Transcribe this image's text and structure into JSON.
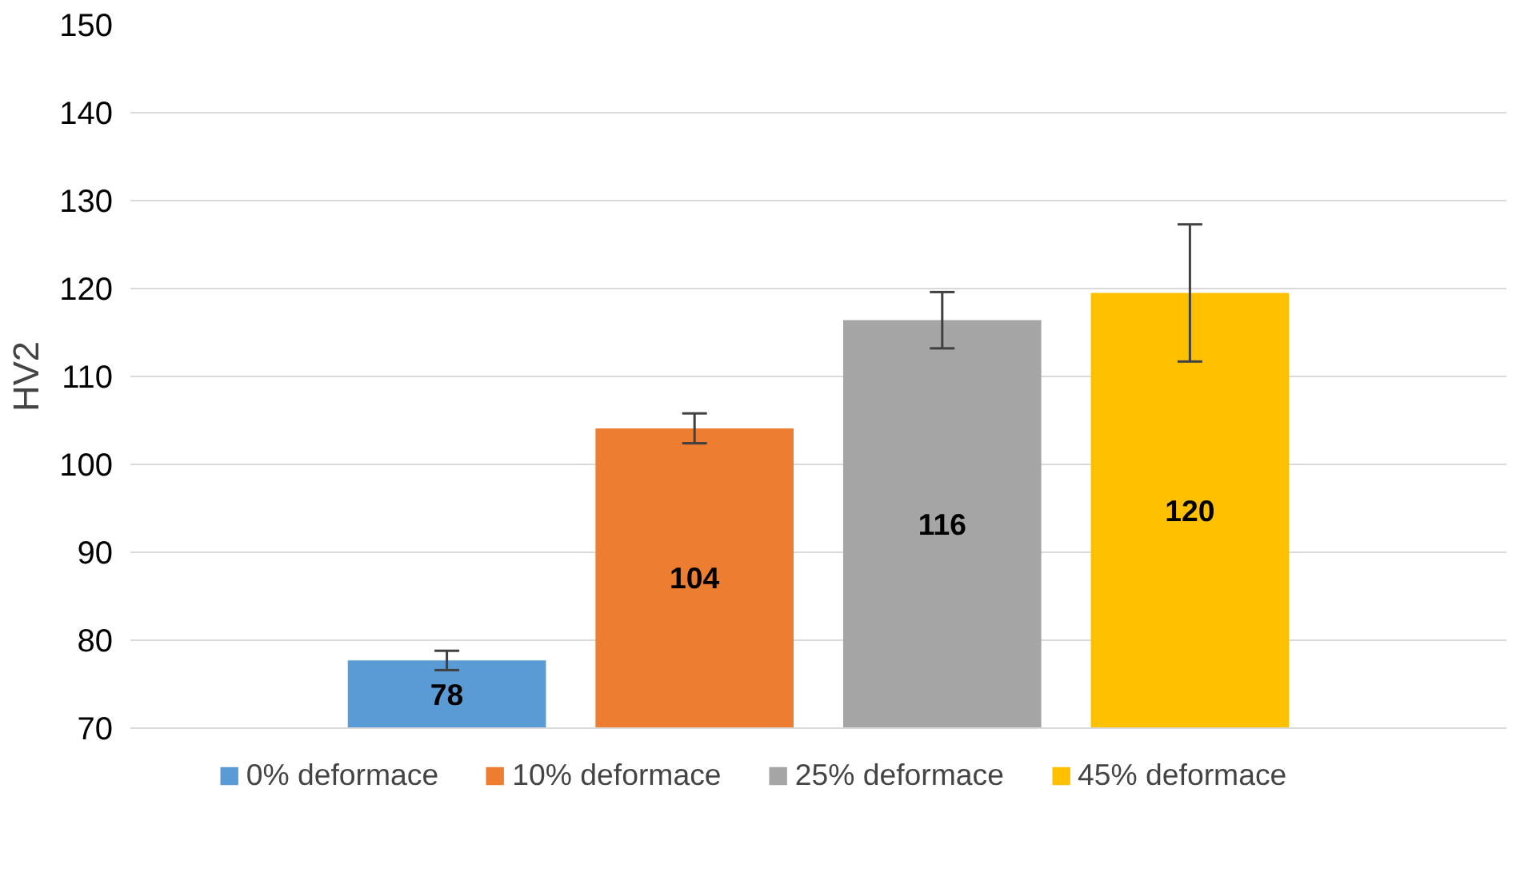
{
  "chart_data": {
    "type": "bar",
    "ylabel": "HV2",
    "categories": [
      null
    ],
    "series": [
      {
        "name": "0% deformace",
        "color": "#5b9bd5",
        "values": [
          77.7
        ],
        "errors": [
          1.1
        ],
        "value_labels": [
          "78"
        ]
      },
      {
        "name": "10% deformace",
        "color": "#ed7d31",
        "values": [
          104.1
        ],
        "errors": [
          1.7
        ],
        "value_labels": [
          "104"
        ]
      },
      {
        "name": "25% deformace",
        "color": "#a5a5a5",
        "values": [
          116.4
        ],
        "errors": [
          3.2
        ],
        "value_labels": [
          "116"
        ]
      },
      {
        "name": "45% deformace",
        "color": "#ffc000",
        "values": [
          119.5
        ],
        "errors": [
          7.8
        ],
        "value_labels": [
          "120"
        ]
      }
    ],
    "ylim": [
      70,
      150
    ],
    "yticks": [
      70,
      80,
      90,
      100,
      110,
      120,
      130,
      140,
      150
    ],
    "grid": "y",
    "legend": "bottom"
  }
}
